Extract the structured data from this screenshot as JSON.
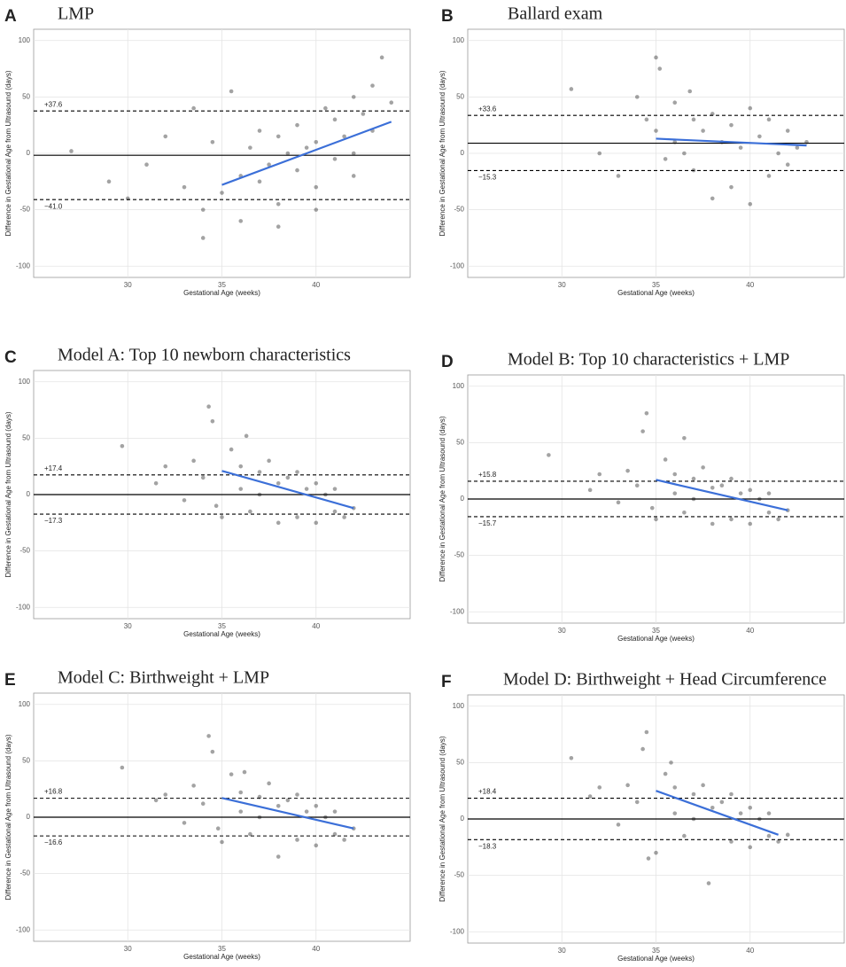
{
  "chart_data": [
    {
      "type": "scatter",
      "panel": "A",
      "title": "LMP",
      "xlabel": "Gestational Age (weeks)",
      "ylabel": "Difference in Gestational Age from Ultrasound (days)",
      "xlim": [
        25,
        45
      ],
      "ylim": [
        -110,
        110
      ],
      "xticks": [
        30,
        35,
        40
      ],
      "yticks": [
        -100,
        -50,
        0,
        50,
        100
      ],
      "grid": true,
      "point_color": "#333333",
      "x": [
        27,
        29,
        30,
        31,
        32,
        33,
        33.5,
        34,
        34.5,
        35,
        35.5,
        36,
        36.5,
        37,
        37,
        37.5,
        38,
        38,
        38.5,
        39,
        39,
        39.5,
        40,
        40,
        40.5,
        41,
        41,
        41.5,
        42,
        42,
        42.5,
        43,
        43,
        43.5,
        44,
        36,
        34,
        38,
        40,
        42
      ],
      "y": [
        2,
        -25,
        -40,
        -10,
        15,
        -30,
        40,
        -50,
        10,
        -35,
        55,
        -20,
        5,
        -25,
        20,
        -10,
        -45,
        15,
        0,
        -15,
        25,
        5,
        -30,
        10,
        40,
        -5,
        30,
        15,
        50,
        0,
        35,
        60,
        20,
        85,
        45,
        -60,
        -75,
        -65,
        -50,
        -20
      ],
      "mean": -1.7,
      "limits": [
        {
          "value": 37.6,
          "label": "+37.6"
        },
        {
          "value": -41.0,
          "label": "−41.0"
        }
      ],
      "fit": {
        "x": [
          35,
          44
        ],
        "y": [
          -28,
          28
        ],
        "color": "#3b6fd8"
      }
    },
    {
      "type": "scatter",
      "panel": "B",
      "title": "Ballard exam",
      "xlabel": "Gestational Age (weeks)",
      "ylabel": "Difference in Gestational Age from Ultrasound (days)",
      "xlim": [
        25,
        45
      ],
      "ylim": [
        -110,
        110
      ],
      "xticks": [
        30,
        35,
        40
      ],
      "yticks": [
        -100,
        -50,
        0,
        50,
        100
      ],
      "grid": true,
      "point_color": "#333333",
      "x": [
        30.5,
        32,
        33,
        34,
        34.5,
        35,
        35,
        35.5,
        36,
        36,
        36.5,
        37,
        37,
        37.5,
        38,
        38,
        38.5,
        39,
        39,
        39.5,
        40,
        40,
        40.5,
        41,
        41,
        41.5,
        42,
        42,
        42.5,
        43,
        35.2,
        36.8
      ],
      "y": [
        57,
        0,
        -20,
        50,
        30,
        85,
        20,
        -5,
        45,
        10,
        0,
        30,
        -15,
        20,
        -40,
        35,
        10,
        -30,
        25,
        5,
        -45,
        40,
        15,
        -20,
        30,
        0,
        20,
        -10,
        5,
        10,
        75,
        55
      ],
      "mean": 9,
      "limits": [
        {
          "value": 33.6,
          "label": "+33.6"
        },
        {
          "value": -15.3,
          "label": "−15.3"
        }
      ],
      "fit": {
        "x": [
          35,
          43
        ],
        "y": [
          13,
          7
        ],
        "color": "#3b6fd8"
      }
    },
    {
      "type": "scatter",
      "panel": "C",
      "title": "Model A: Top 10 newborn characteristics",
      "xlabel": "Gestational Age (weeks)",
      "ylabel": "Difference in Gestational Age from Ultrasound (days)",
      "xlim": [
        25,
        45
      ],
      "ylim": [
        -110,
        110
      ],
      "xticks": [
        30,
        35,
        40
      ],
      "yticks": [
        -100,
        -50,
        0,
        50,
        100
      ],
      "grid": true,
      "point_color": "#333333",
      "x": [
        29.7,
        31.5,
        32,
        33,
        33.5,
        34,
        34.3,
        34.5,
        35,
        35.5,
        36,
        36,
        36.5,
        37,
        37,
        37.5,
        38,
        38,
        38.5,
        39,
        39,
        39.5,
        40,
        40,
        40.5,
        41,
        41,
        41.5,
        42,
        36.3,
        34.7
      ],
      "y": [
        43,
        10,
        25,
        -5,
        30,
        15,
        78,
        65,
        -20,
        40,
        5,
        25,
        -15,
        20,
        0,
        30,
        -25,
        10,
        15,
        -20,
        20,
        5,
        -25,
        10,
        0,
        -15,
        5,
        -20,
        -12,
        52,
        -10
      ],
      "mean": 0,
      "limits": [
        {
          "value": 17.4,
          "label": "+17.4"
        },
        {
          "value": -17.3,
          "label": "−17.3"
        }
      ],
      "fit": {
        "x": [
          35,
          42
        ],
        "y": [
          21,
          -12
        ],
        "color": "#3b6fd8"
      }
    },
    {
      "type": "scatter",
      "panel": "D",
      "title": "Model B: Top 10 characteristics + LMP",
      "xlabel": "Gestational Age (weeks)",
      "ylabel": "Difference in Gestational Age from Ultrasound (days)",
      "xlim": [
        25,
        45
      ],
      "ylim": [
        -110,
        110
      ],
      "xticks": [
        30,
        35,
        40
      ],
      "yticks": [
        -100,
        -50,
        0,
        50,
        100
      ],
      "grid": true,
      "point_color": "#333333",
      "x": [
        29.3,
        31.5,
        32,
        33,
        33.5,
        34,
        34.5,
        34.3,
        35,
        35.5,
        36,
        36,
        36.5,
        37,
        37,
        37.5,
        38,
        38,
        38.5,
        39,
        39,
        39.5,
        40,
        40,
        40.5,
        41,
        41,
        41.5,
        42,
        36.5,
        34.8
      ],
      "y": [
        39,
        8,
        22,
        -3,
        25,
        12,
        76,
        60,
        -18,
        35,
        5,
        22,
        -12,
        18,
        0,
        28,
        -22,
        10,
        12,
        -18,
        18,
        5,
        -22,
        8,
        0,
        -12,
        5,
        -18,
        -10,
        54,
        -8
      ],
      "mean": 0,
      "limits": [
        {
          "value": 15.8,
          "label": "+15.8"
        },
        {
          "value": -15.7,
          "label": "−15.7"
        }
      ],
      "fit": {
        "x": [
          35,
          42
        ],
        "y": [
          17,
          -10
        ],
        "color": "#3b6fd8"
      }
    },
    {
      "type": "scatter",
      "panel": "E",
      "title": "Model C: Birthweight + LMP",
      "xlabel": "Gestational Age (weeks)",
      "ylabel": "Difference in Gestational Age from Ultrasound (days)",
      "xlim": [
        25,
        45
      ],
      "ylim": [
        -110,
        110
      ],
      "xticks": [
        30,
        35,
        40
      ],
      "yticks": [
        -100,
        -50,
        0,
        50,
        100
      ],
      "grid": true,
      "point_color": "#333333",
      "x": [
        29.7,
        31.5,
        32,
        33,
        33.5,
        34,
        34.3,
        34.5,
        35,
        35.5,
        36,
        36,
        36.5,
        37,
        37,
        37.5,
        38,
        38,
        38.5,
        39,
        39,
        39.5,
        40,
        40,
        40.5,
        41,
        41,
        41.5,
        42,
        36.2,
        34.8
      ],
      "y": [
        44,
        15,
        20,
        -5,
        28,
        12,
        72,
        58,
        -22,
        38,
        5,
        22,
        -15,
        18,
        0,
        30,
        -35,
        10,
        15,
        -20,
        20,
        5,
        -25,
        10,
        0,
        -15,
        5,
        -20,
        -10,
        40,
        -10
      ],
      "mean": 0,
      "limits": [
        {
          "value": 16.8,
          "label": "+16.8"
        },
        {
          "value": -16.6,
          "label": "−16.6"
        }
      ],
      "fit": {
        "x": [
          35,
          42
        ],
        "y": [
          17,
          -10
        ],
        "color": "#3b6fd8"
      }
    },
    {
      "type": "scatter",
      "panel": "F",
      "title": "Model D: Birthweight + Head Circumference",
      "xlabel": "Gestational Age (weeks)",
      "ylabel": "Difference in Gestational Age from Ultrasound (days)",
      "xlim": [
        25,
        45
      ],
      "ylim": [
        -110,
        110
      ],
      "xticks": [
        30,
        35,
        40
      ],
      "yticks": [
        -100,
        -50,
        0,
        50,
        100
      ],
      "grid": true,
      "point_color": "#333333",
      "x": [
        30.5,
        31.5,
        32,
        33,
        33.5,
        34,
        34.5,
        34.3,
        35,
        35.5,
        36,
        36,
        36.5,
        37,
        37,
        37.5,
        37.8,
        38,
        38.5,
        39,
        39,
        39.5,
        40,
        40,
        40.5,
        41,
        41,
        41.5,
        42,
        35.8,
        34.6
      ],
      "y": [
        54,
        20,
        28,
        -5,
        30,
        15,
        77,
        62,
        -30,
        40,
        5,
        28,
        -15,
        22,
        0,
        30,
        -57,
        10,
        15,
        -20,
        22,
        5,
        -25,
        10,
        0,
        -15,
        5,
        -20,
        -14,
        50,
        -35
      ],
      "mean": 0,
      "limits": [
        {
          "value": 18.4,
          "label": "+18.4"
        },
        {
          "value": -18.3,
          "label": "−18.3"
        }
      ],
      "fit": {
        "x": [
          35,
          41.5
        ],
        "y": [
          25,
          -14
        ],
        "color": "#3b6fd8"
      }
    }
  ]
}
